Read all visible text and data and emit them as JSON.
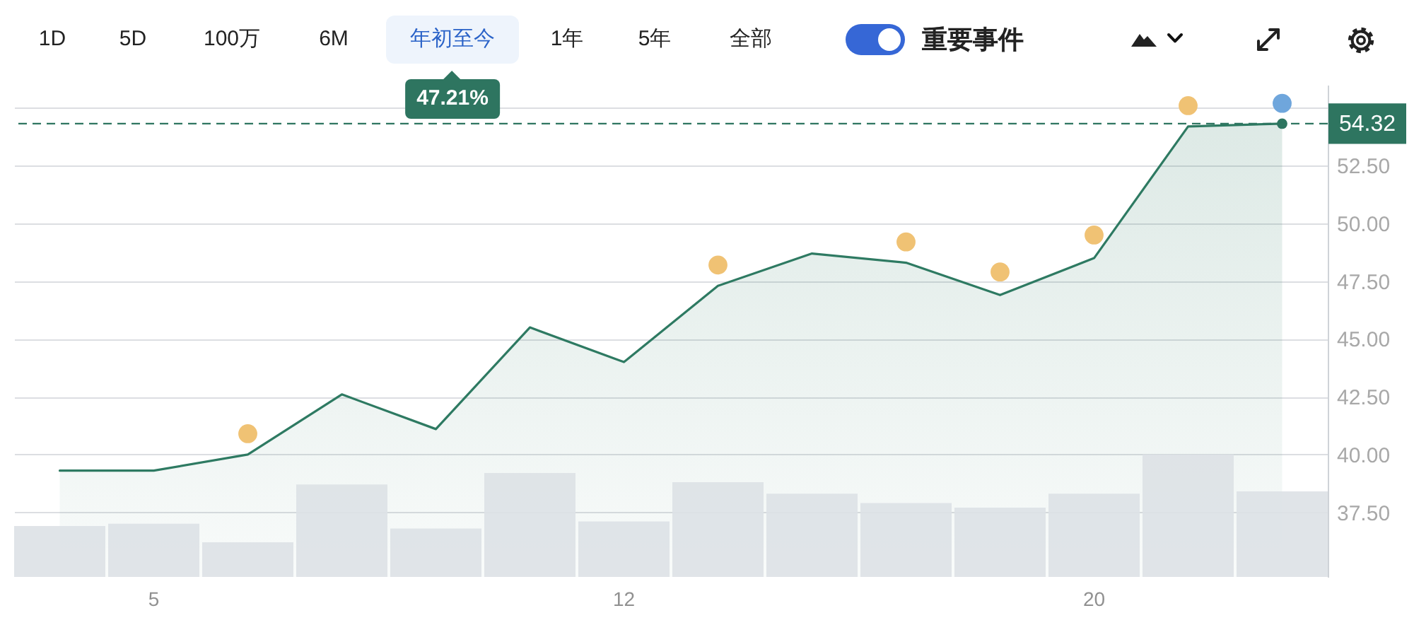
{
  "chart_data": {
    "type": "area",
    "categories": [
      null,
      "5",
      null,
      null,
      null,
      null,
      "12",
      null,
      null,
      null,
      null,
      "20",
      null,
      null
    ],
    "series": [
      {
        "color": "#2e7a62",
        "values": [
          39.3,
          39.3,
          40.0,
          42.6,
          41.1,
          45.5,
          44.0,
          47.3,
          48.7,
          48.3,
          46.9,
          48.5,
          54.2,
          54.32
        ]
      },
      {
        "type": "bar",
        "color": "#dde1e5",
        "base": [
          34.7,
          34.7,
          34.7,
          34.7,
          34.7,
          34.7,
          34.7,
          34.7,
          34.7,
          34.7,
          34.7,
          34.7,
          34.7,
          34.7
        ],
        "values": [
          2.2,
          2.3,
          1.5,
          4.0,
          2.1,
          4.5,
          2.4,
          4.1,
          3.6,
          3.2,
          3.0,
          3.6,
          5.3,
          3.7
        ]
      },
      {
        "type": "scatter",
        "color": "#f0c274",
        "values": [
          null,
          null,
          40.9,
          null,
          null,
          null,
          null,
          48.2,
          null,
          49.2,
          47.9,
          49.5,
          55.1,
          null
        ]
      },
      {
        "type": "scatter",
        "color": "#6fa6dc",
        "values": [
          null,
          null,
          null,
          null,
          null,
          null,
          null,
          null,
          null,
          null,
          null,
          null,
          null,
          55.2
        ]
      },
      {
        "type": "scatter",
        "color": "#2e7560",
        "values": [
          null,
          null,
          null,
          null,
          null,
          null,
          null,
          null,
          null,
          null,
          null,
          null,
          null,
          54.32
        ]
      }
    ],
    "ylim": [
      34.7,
      56
    ],
    "yticks": [
      {
        "value": 37.5,
        "label": "37.50"
      },
      {
        "value": 40,
        "label": "40.00"
      },
      {
        "value": 42.5,
        "label": "42.50"
      },
      {
        "value": 45,
        "label": "45.00"
      },
      {
        "value": 47.5,
        "label": "47.50"
      },
      {
        "value": 50,
        "label": "50.00"
      },
      {
        "value": 52.5,
        "label": "52.50"
      },
      {
        "value": 55,
        "label": null
      }
    ],
    "grid": "y",
    "ref_lines": [
      {
        "axis": "y",
        "value": 54.32,
        "label": "54.32",
        "color": "#2e7560",
        "line_style": "dashed"
      }
    ],
    "annotations": [
      "1D",
      "5D",
      "100万",
      "6M",
      "年初至今",
      "1年",
      "5年",
      "全部",
      "重要事件",
      "47.21%"
    ]
  }
}
